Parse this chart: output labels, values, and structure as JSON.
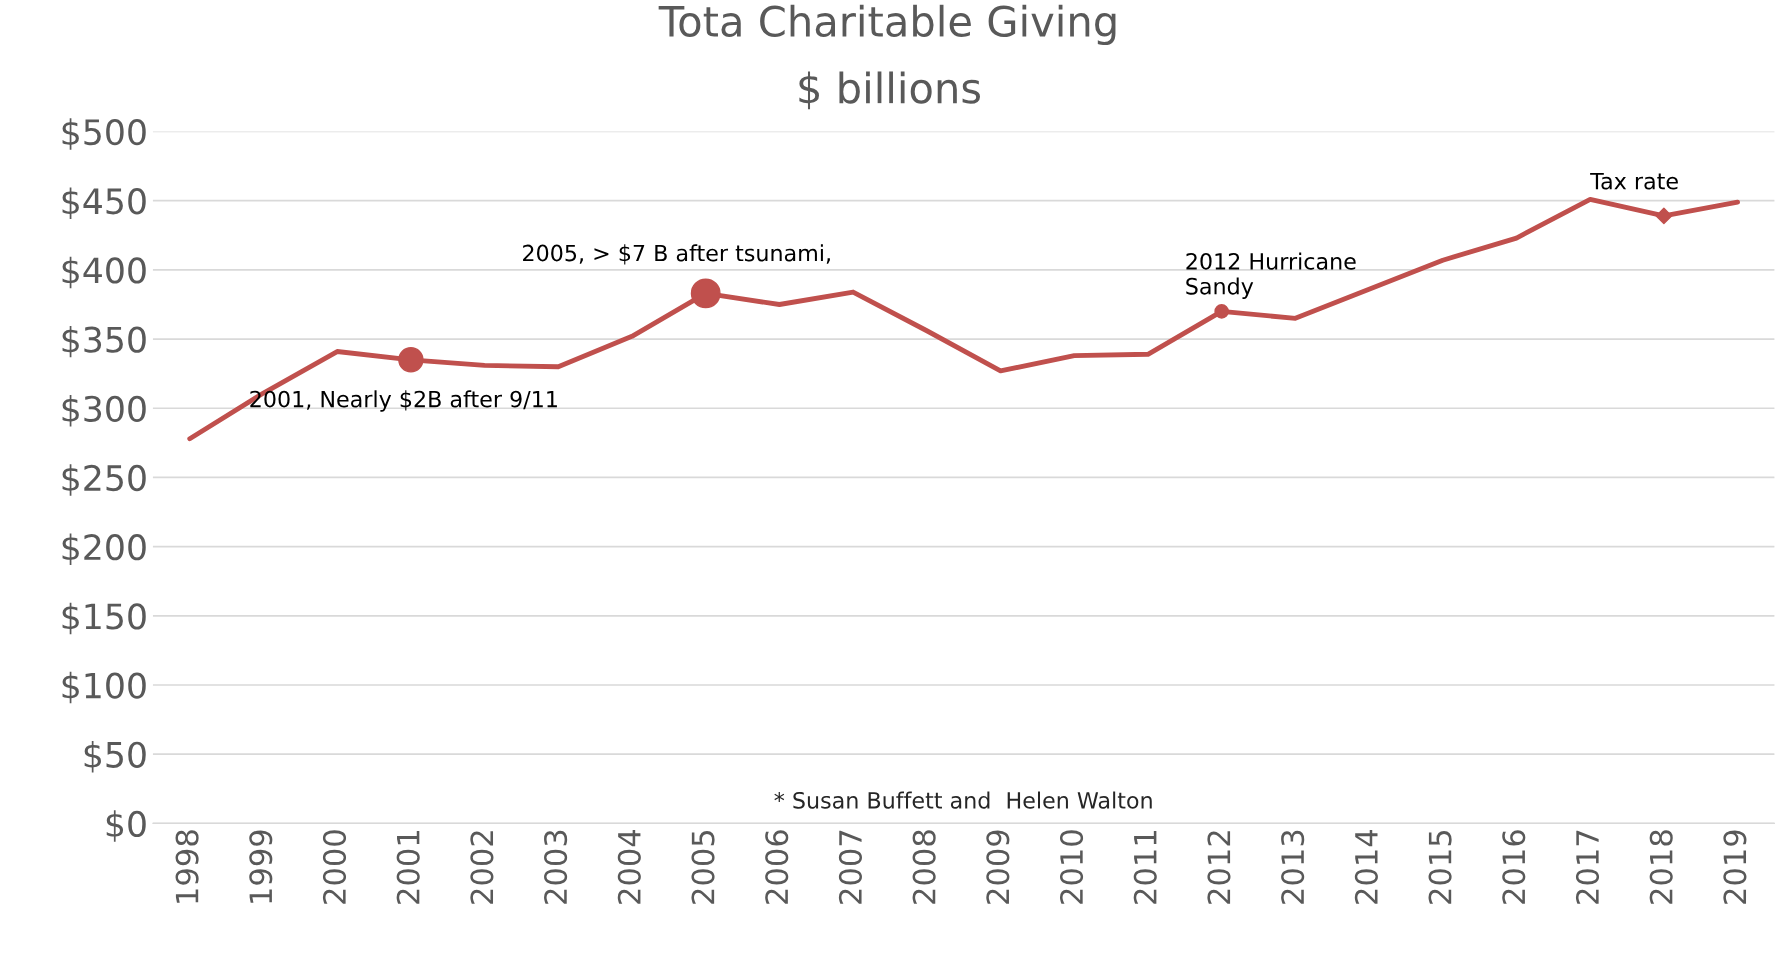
{
  "chart_data": {
    "type": "line",
    "title": "Tota Charitable Giving",
    "subtitle": "$ billions",
    "categories": [
      "1998",
      "1999",
      "2000",
      "2001",
      "2002",
      "2003",
      "2004",
      "2005",
      "2006",
      "2007",
      "2008",
      "2009",
      "2010",
      "2011",
      "2012",
      "2013",
      "2014",
      "2015",
      "2016",
      "2017",
      "2018",
      "2019"
    ],
    "series": [
      {
        "color": "#c0504d",
        "values": [
          278,
          311,
          341,
          335,
          331,
          330,
          352,
          383,
          375,
          384,
          356,
          327,
          338,
          339,
          370,
          365,
          386,
          407,
          423,
          451,
          439,
          449
        ]
      }
    ],
    "ylim": [
      0,
      500
    ],
    "yticks": [
      {
        "value": 0,
        "label": "$0"
      },
      {
        "value": 50,
        "label": "$50"
      },
      {
        "value": 100,
        "label": "$100"
      },
      {
        "value": 150,
        "label": "$150"
      },
      {
        "value": 200,
        "label": "$200"
      },
      {
        "value": 250,
        "label": "$250"
      },
      {
        "value": 300,
        "label": "$300"
      },
      {
        "value": 350,
        "label": "$350"
      },
      {
        "value": 400,
        "label": "$400"
      },
      {
        "value": 450,
        "label": "$450"
      },
      {
        "value": 500,
        "label": "$500"
      }
    ],
    "grid": "y",
    "legend": false,
    "annotations": [
      {
        "text": "2001, Nearly $2B after 9/11",
        "x": "2001",
        "y": 335
      },
      {
        "text": "2005, > $7 B after tsunami,",
        "x": "2005",
        "y": 383
      },
      {
        "text": "2012 Hurricane\nSandy",
        "x": "2012",
        "y": 370
      },
      {
        "text": "Tax rate",
        "x": "2018",
        "y": 439
      },
      "* Susan Buffett and  Helen Walton"
    ]
  }
}
